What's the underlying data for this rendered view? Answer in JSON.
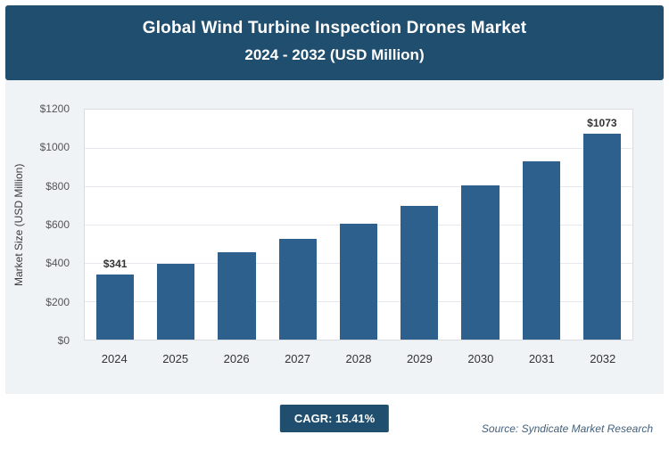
{
  "header": {
    "title_line1": "Global Wind Turbine Inspection Drones Market",
    "title_line2": "2024 - 2032 (USD Million)"
  },
  "chart_data": {
    "type": "bar",
    "title": "Global Wind Turbine Inspection Drones Market 2024 - 2032 (USD Million)",
    "categories": [
      "2024",
      "2025",
      "2026",
      "2027",
      "2028",
      "2029",
      "2030",
      "2031",
      "2032"
    ],
    "values": [
      341,
      394,
      454,
      524,
      605,
      698,
      806,
      930,
      1073
    ],
    "value_labels": [
      {
        "index": 0,
        "text": "$341"
      },
      {
        "index": 8,
        "text": "$1073"
      }
    ],
    "xlabel": "",
    "ylabel": "Market Size (USD Million)",
    "ylim": [
      0,
      1200
    ],
    "yticks": [
      {
        "v": 0,
        "label": "$0"
      },
      {
        "v": 200,
        "label": "$200"
      },
      {
        "v": 400,
        "label": "$400"
      },
      {
        "v": 600,
        "label": "$600"
      },
      {
        "v": 800,
        "label": "$800"
      },
      {
        "v": 1000,
        "label": "$1000"
      },
      {
        "v": 1200,
        "label": "$1200"
      }
    ],
    "grid": true,
    "legend": "none",
    "bar_color": "#2e608d"
  },
  "footer": {
    "cagr_label": "CAGR: 15.41%",
    "source": "Source: Syndicate Market Research"
  }
}
